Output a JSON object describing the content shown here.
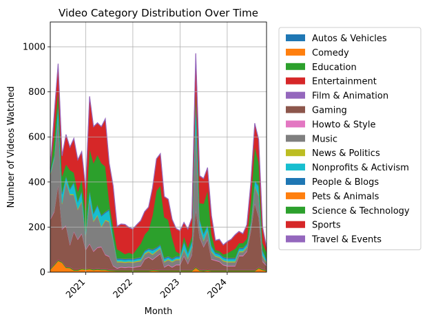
{
  "chart_data": {
    "type": "area",
    "stacked": true,
    "title": "Video Category Distribution Over Time",
    "xlabel": "Month",
    "ylabel": "Number of Videos Watched",
    "ylim": [
      0,
      1110
    ],
    "yticks": [
      0,
      200,
      400,
      600,
      800,
      1000
    ],
    "xlim": [
      "2020-04",
      "2024-11"
    ],
    "xticks": [
      {
        "label": "2021",
        "month": "2021-01"
      },
      {
        "label": "2022",
        "month": "2022-01"
      },
      {
        "label": "2023",
        "month": "2023-01"
      },
      {
        "label": "2024",
        "month": "2024-01"
      }
    ],
    "grid": true,
    "legend": "outside-right",
    "x": [
      "2020-04",
      "2020-05",
      "2020-06",
      "2020-07",
      "2020-08",
      "2020-09",
      "2020-10",
      "2020-11",
      "2020-12",
      "2021-01",
      "2021-02",
      "2021-03",
      "2021-04",
      "2021-05",
      "2021-06",
      "2021-07",
      "2021-08",
      "2021-09",
      "2021-10",
      "2021-11",
      "2021-12",
      "2022-01",
      "2022-02",
      "2022-03",
      "2022-04",
      "2022-05",
      "2022-06",
      "2022-07",
      "2022-08",
      "2022-09",
      "2022-10",
      "2022-11",
      "2022-12",
      "2023-01",
      "2023-02",
      "2023-03",
      "2023-04",
      "2023-05",
      "2023-06",
      "2023-07",
      "2023-08",
      "2023-09",
      "2023-10",
      "2023-11",
      "2023-12",
      "2024-01",
      "2024-02",
      "2024-03",
      "2024-04",
      "2024-05",
      "2024-06",
      "2024-07",
      "2024-08",
      "2024-09",
      "2024-10",
      "2024-11"
    ],
    "series": [
      {
        "name": "Autos & Vehicles",
        "color": "#1f77b4",
        "values": [
          1,
          2,
          2,
          2,
          1,
          1,
          1,
          1,
          1,
          1,
          1,
          1,
          1,
          1,
          1,
          1,
          1,
          1,
          1,
          1,
          1,
          1,
          1,
          1,
          1,
          1,
          1,
          1,
          1,
          1,
          1,
          1,
          1,
          1,
          1,
          1,
          1,
          1,
          1,
          1,
          1,
          1,
          1,
          1,
          1,
          1,
          1,
          1,
          1,
          1,
          1,
          1,
          1,
          1,
          1,
          1
        ]
      },
      {
        "name": "Comedy",
        "color": "#ff7f0e",
        "values": [
          10,
          28,
          48,
          40,
          18,
          17,
          6,
          6,
          12,
          10,
          12,
          8,
          10,
          8,
          8,
          5,
          4,
          3,
          3,
          3,
          3,
          3,
          3,
          3,
          3,
          3,
          6,
          5,
          3,
          3,
          3,
          3,
          3,
          3,
          3,
          3,
          3,
          18,
          5,
          3,
          6,
          3,
          3,
          3,
          3,
          3,
          3,
          3,
          3,
          3,
          3,
          3,
          3,
          16,
          8,
          4
        ]
      },
      {
        "name": "Education",
        "color": "#2ca02c",
        "values": [
          4,
          4,
          4,
          4,
          4,
          4,
          4,
          4,
          4,
          4,
          4,
          4,
          4,
          4,
          4,
          4,
          4,
          4,
          4,
          4,
          4,
          4,
          4,
          4,
          4,
          4,
          4,
          4,
          4,
          4,
          4,
          4,
          4,
          4,
          4,
          4,
          4,
          4,
          4,
          4,
          4,
          4,
          4,
          4,
          4,
          4,
          4,
          4,
          4,
          4,
          4,
          4,
          4,
          4,
          4,
          4
        ]
      },
      {
        "name": "Entertainment",
        "color": "#d62728",
        "values": [
          2,
          2,
          2,
          2,
          2,
          2,
          2,
          2,
          2,
          2,
          2,
          2,
          2,
          2,
          2,
          2,
          2,
          2,
          2,
          2,
          2,
          2,
          2,
          2,
          2,
          2,
          2,
          2,
          2,
          2,
          2,
          2,
          2,
          2,
          2,
          2,
          2,
          2,
          2,
          2,
          2,
          2,
          2,
          2,
          2,
          2,
          2,
          2,
          2,
          2,
          2,
          2,
          2,
          2,
          2,
          2
        ]
      },
      {
        "name": "Film & Animation",
        "color": "#9467bd",
        "values": [
          1,
          1,
          1,
          1,
          1,
          1,
          1,
          1,
          1,
          1,
          1,
          1,
          1,
          1,
          1,
          1,
          1,
          1,
          1,
          1,
          1,
          1,
          1,
          1,
          1,
          1,
          1,
          1,
          1,
          1,
          1,
          1,
          1,
          1,
          1,
          1,
          1,
          1,
          1,
          1,
          1,
          1,
          1,
          1,
          1,
          1,
          1,
          1,
          1,
          1,
          1,
          1,
          1,
          1,
          1,
          1
        ]
      },
      {
        "name": "Gaming",
        "color": "#8c564b",
        "values": [
          215,
          230,
          330,
          140,
          180,
          95,
          165,
          130,
          150,
          80,
          105,
          75,
          90,
          95,
          60,
          55,
          15,
          5,
          10,
          8,
          10,
          8,
          12,
          15,
          45,
          55,
          40,
          55,
          70,
          10,
          20,
          10,
          20,
          20,
          60,
          25,
          65,
          250,
          140,
          100,
          130,
          45,
          40,
          35,
          20,
          15,
          15,
          15,
          60,
          60,
          80,
          170,
          295,
          220,
          30,
          15
        ]
      },
      {
        "name": "Howto & Style",
        "color": "#e377c2",
        "values": [
          3,
          3,
          3,
          3,
          3,
          3,
          3,
          3,
          3,
          3,
          3,
          3,
          3,
          3,
          3,
          3,
          3,
          3,
          3,
          3,
          3,
          3,
          3,
          3,
          3,
          3,
          3,
          3,
          3,
          3,
          3,
          3,
          3,
          3,
          3,
          3,
          3,
          3,
          3,
          3,
          3,
          3,
          3,
          3,
          3,
          3,
          3,
          3,
          3,
          3,
          3,
          3,
          3,
          3,
          3,
          3
        ]
      },
      {
        "name": "Music",
        "color": "#7f7f7f",
        "values": [
          195,
          230,
          290,
          110,
          190,
          220,
          160,
          130,
          140,
          55,
          190,
          130,
          140,
          85,
          150,
          150,
          110,
          25,
          20,
          20,
          20,
          20,
          20,
          20,
          20,
          20,
          20,
          20,
          20,
          20,
          20,
          20,
          20,
          20,
          25,
          20,
          30,
          380,
          40,
          25,
          35,
          30,
          15,
          15,
          15,
          15,
          15,
          15,
          15,
          15,
          15,
          20,
          70,
          90,
          20,
          10
        ]
      },
      {
        "name": "News & Politics",
        "color": "#bcbd22",
        "values": [
          4,
          4,
          4,
          4,
          4,
          4,
          4,
          4,
          4,
          4,
          4,
          4,
          4,
          4,
          4,
          4,
          4,
          4,
          4,
          4,
          4,
          4,
          4,
          4,
          4,
          4,
          4,
          4,
          4,
          4,
          4,
          4,
          4,
          4,
          4,
          4,
          4,
          4,
          4,
          4,
          4,
          4,
          4,
          4,
          4,
          4,
          4,
          4,
          4,
          4,
          4,
          4,
          4,
          4,
          4,
          4
        ]
      },
      {
        "name": "Nonprofits & Activism",
        "color": "#17becf",
        "values": [
          8,
          10,
          60,
          40,
          20,
          20,
          50,
          30,
          40,
          12,
          40,
          30,
          40,
          45,
          30,
          50,
          10,
          8,
          8,
          8,
          8,
          8,
          8,
          8,
          8,
          8,
          15,
          10,
          10,
          10,
          8,
          8,
          8,
          8,
          30,
          20,
          20,
          120,
          30,
          25,
          20,
          20,
          10,
          10,
          10,
          10,
          10,
          10,
          10,
          10,
          10,
          10,
          20,
          40,
          20,
          8
        ]
      },
      {
        "name": "People & Blogs",
        "color": "#1f77b4",
        "values": [
          5,
          5,
          8,
          8,
          5,
          5,
          5,
          5,
          5,
          5,
          5,
          5,
          5,
          5,
          5,
          5,
          5,
          5,
          5,
          5,
          5,
          5,
          5,
          5,
          5,
          5,
          5,
          5,
          5,
          5,
          5,
          5,
          5,
          5,
          5,
          5,
          5,
          5,
          5,
          5,
          5,
          5,
          5,
          5,
          5,
          5,
          5,
          5,
          5,
          5,
          5,
          5,
          5,
          5,
          5,
          5
        ]
      },
      {
        "name": "Pets & Animals",
        "color": "#ff7f0e",
        "values": [
          1,
          1,
          1,
          1,
          1,
          1,
          1,
          1,
          1,
          1,
          1,
          1,
          1,
          1,
          1,
          1,
          1,
          1,
          1,
          1,
          1,
          1,
          1,
          1,
          1,
          1,
          1,
          1,
          1,
          1,
          1,
          1,
          1,
          1,
          1,
          1,
          1,
          1,
          1,
          1,
          1,
          1,
          1,
          1,
          1,
          1,
          1,
          1,
          1,
          1,
          1,
          1,
          1,
          1,
          1,
          1
        ]
      },
      {
        "name": "Science & Technology",
        "color": "#2ca02c",
        "values": [
          10,
          80,
          60,
          70,
          50,
          80,
          40,
          40,
          50,
          90,
          180,
          220,
          220,
          230,
          200,
          30,
          40,
          40,
          30,
          20,
          25,
          20,
          40,
          60,
          70,
          80,
          150,
          250,
          260,
          180,
          160,
          90,
          20,
          10,
          20,
          20,
          20,
          30,
          70,
          130,
          150,
          50,
          10,
          10,
          10,
          20,
          30,
          40,
          20,
          20,
          20,
          90,
          150,
          100,
          30,
          30
        ]
      },
      {
        "name": "Sports",
        "color": "#d62728",
        "values": [
          1,
          100,
          110,
          90,
          130,
          100,
          150,
          140,
          120,
          100,
          230,
          160,
          140,
          160,
          210,
          170,
          180,
          100,
          120,
          130,
          110,
          110,
          105,
          100,
          100,
          100,
          120,
          140,
          140,
          90,
          90,
          80,
          100,
          100,
          60,
          80,
          80,
          150,
          120,
          110,
          100,
          80,
          40,
          50,
          40,
          50,
          50,
          60,
          50,
          40,
          60,
          80,
          100,
          100,
          70,
          20
        ]
      },
      {
        "name": "Travel & Events",
        "color": "#9467bd",
        "values": [
          1,
          2,
          2,
          2,
          2,
          2,
          2,
          2,
          2,
          2,
          2,
          2,
          2,
          2,
          2,
          2,
          2,
          2,
          2,
          2,
          2,
          2,
          2,
          2,
          2,
          2,
          2,
          2,
          2,
          2,
          2,
          2,
          2,
          2,
          2,
          2,
          2,
          2,
          2,
          2,
          2,
          2,
          2,
          2,
          2,
          2,
          2,
          2,
          2,
          2,
          2,
          2,
          2,
          2,
          2,
          2
        ]
      }
    ]
  }
}
